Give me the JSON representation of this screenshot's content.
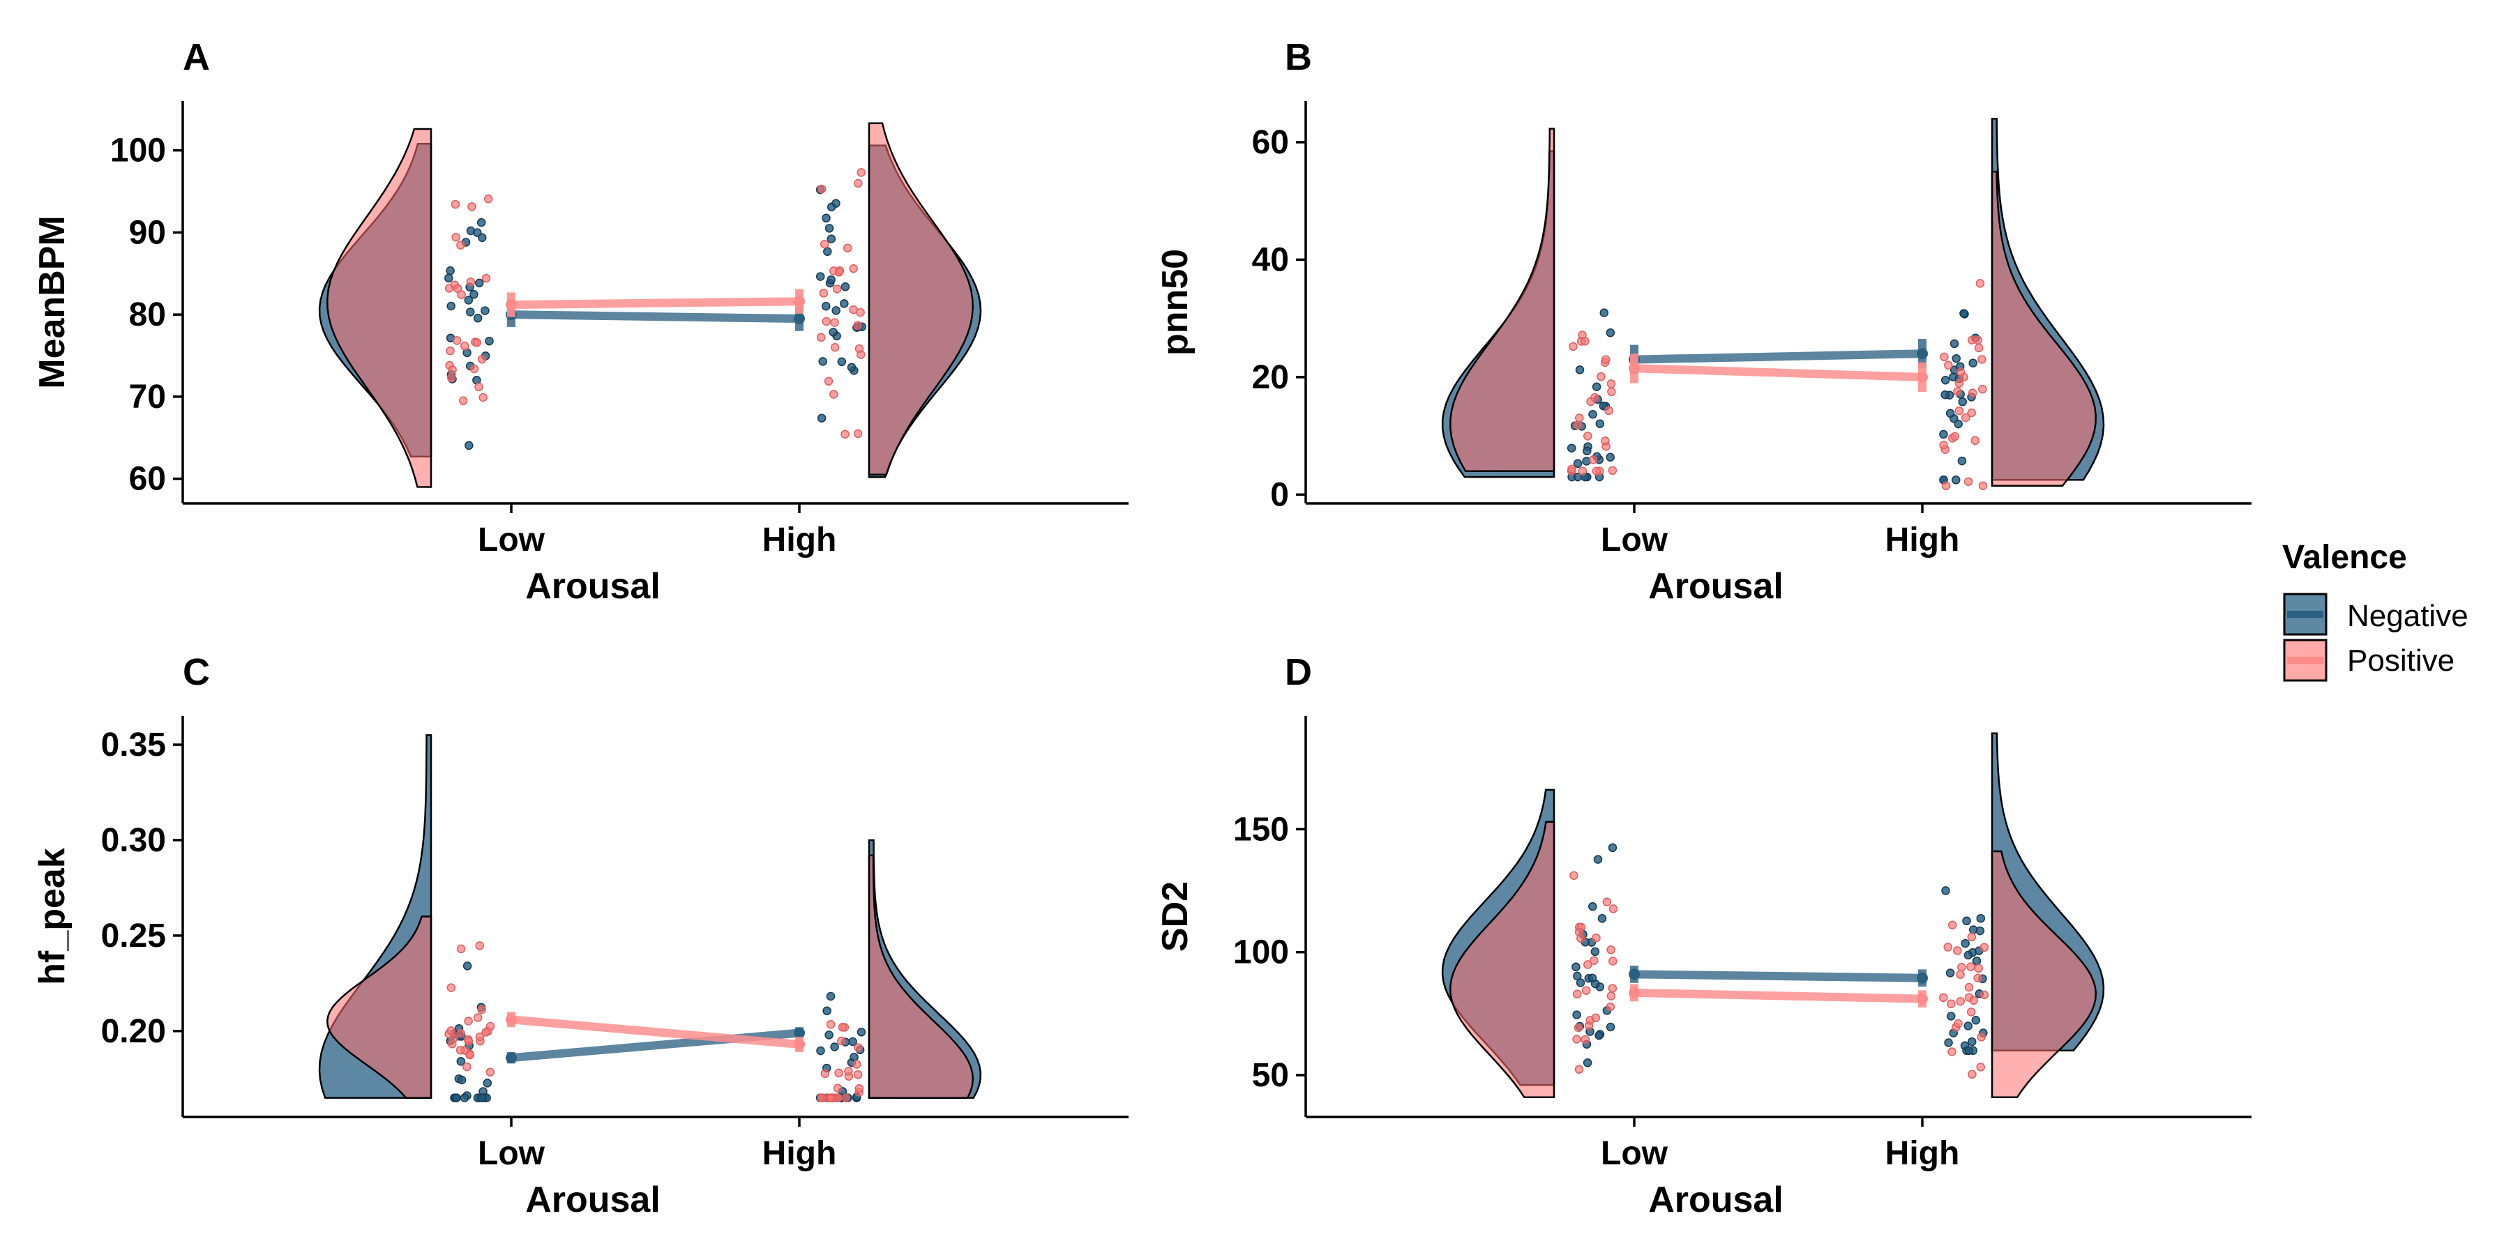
{
  "legend": {
    "title": "Valence",
    "items": [
      {
        "label": "Negative",
        "color": "#2a6084"
      },
      {
        "label": "Positive",
        "color": "#ff6f6f"
      }
    ]
  },
  "chart_data": [
    {
      "type": "raincloud",
      "panel": "A",
      "xlabel": "Arousal",
      "ylabel": "MeanBPM",
      "categories": [
        "Low",
        "High"
      ],
      "ylim": [
        57,
        106
      ],
      "yticks": [
        60,
        70,
        80,
        90,
        100
      ],
      "series": [
        {
          "name": "Negative",
          "mean": [
            80.0,
            79.5
          ],
          "se": [
            1.5,
            1.5
          ],
          "range": [
            [
              62.7,
              100.8
            ],
            [
              60.2,
              100.6
            ]
          ],
          "mode": [
            80.5,
            80.5
          ]
        },
        {
          "name": "Positive",
          "mean": [
            81.2,
            81.6
          ],
          "se": [
            1.5,
            1.5
          ],
          "range": [
            [
              59.0,
              102.6
            ],
            [
              60.5,
              103.3
            ]
          ],
          "mode": [
            81.5,
            81.0
          ]
        }
      ]
    },
    {
      "type": "raincloud",
      "panel": "B",
      "xlabel": "Arousal",
      "ylabel": "pnn50",
      "categories": [
        "Low",
        "High"
      ],
      "ylim": [
        -1.5,
        67
      ],
      "yticks": [
        0,
        20,
        40,
        60
      ],
      "series": [
        {
          "name": "Negative",
          "mean": [
            23.0,
            24.0
          ],
          "se": [
            2.5,
            2.5
          ],
          "range": [
            [
              3.0,
              58.5
            ],
            [
              2.5,
              64.0
            ]
          ],
          "mode": [
            12.0,
            12.0
          ]
        },
        {
          "name": "Positive",
          "mean": [
            21.5,
            20.0
          ],
          "se": [
            2.5,
            2.5
          ],
          "range": [
            [
              4.0,
              62.3
            ],
            [
              1.5,
              55.0
            ]
          ],
          "mode": [
            12.0,
            13.0
          ]
        }
      ]
    },
    {
      "type": "raincloud",
      "panel": "C",
      "xlabel": "Arousal",
      "ylabel": "hf_peak",
      "categories": [
        "Low",
        "High"
      ],
      "ylim": [
        0.155,
        0.365
      ],
      "yticks": [
        0.2,
        0.25,
        0.3,
        0.35
      ],
      "ytick_labels": [
        "0.20",
        "0.25",
        "0.30",
        "0.35"
      ],
      "series": [
        {
          "name": "Negative",
          "mean": [
            0.186,
            0.199
          ],
          "se": [
            0.003,
            0.003
          ],
          "range": [
            [
              0.165,
              0.355
            ],
            [
              0.165,
              0.3
            ]
          ],
          "mode": [
            0.18,
            0.177
          ]
        },
        {
          "name": "Positive",
          "mean": [
            0.206,
            0.193
          ],
          "se": [
            0.004,
            0.004
          ],
          "range": [
            [
              0.165,
              0.26
            ],
            [
              0.165,
              0.292
            ]
          ],
          "mode": [
            0.205,
            0.175
          ]
        }
      ]
    },
    {
      "type": "raincloud",
      "panel": "D",
      "xlabel": "Arousal",
      "ylabel": "SD2",
      "categories": [
        "Low",
        "High"
      ],
      "ylim": [
        33,
        196
      ],
      "yticks": [
        50,
        100,
        150
      ],
      "series": [
        {
          "name": "Negative",
          "mean": [
            91.0,
            89.5
          ],
          "se": [
            3.5,
            3.5
          ],
          "range": [
            [
              46.0,
              166.0
            ],
            [
              60.0,
              189.0
            ]
          ],
          "mode": [
            92.0,
            85.0
          ]
        },
        {
          "name": "Positive",
          "mean": [
            83.5,
            81.0
          ],
          "se": [
            3.5,
            3.5
          ],
          "range": [
            [
              41.0,
              153.0
            ],
            [
              41.0,
              141.0
            ]
          ],
          "mode": [
            85.0,
            83.0
          ]
        }
      ]
    }
  ]
}
